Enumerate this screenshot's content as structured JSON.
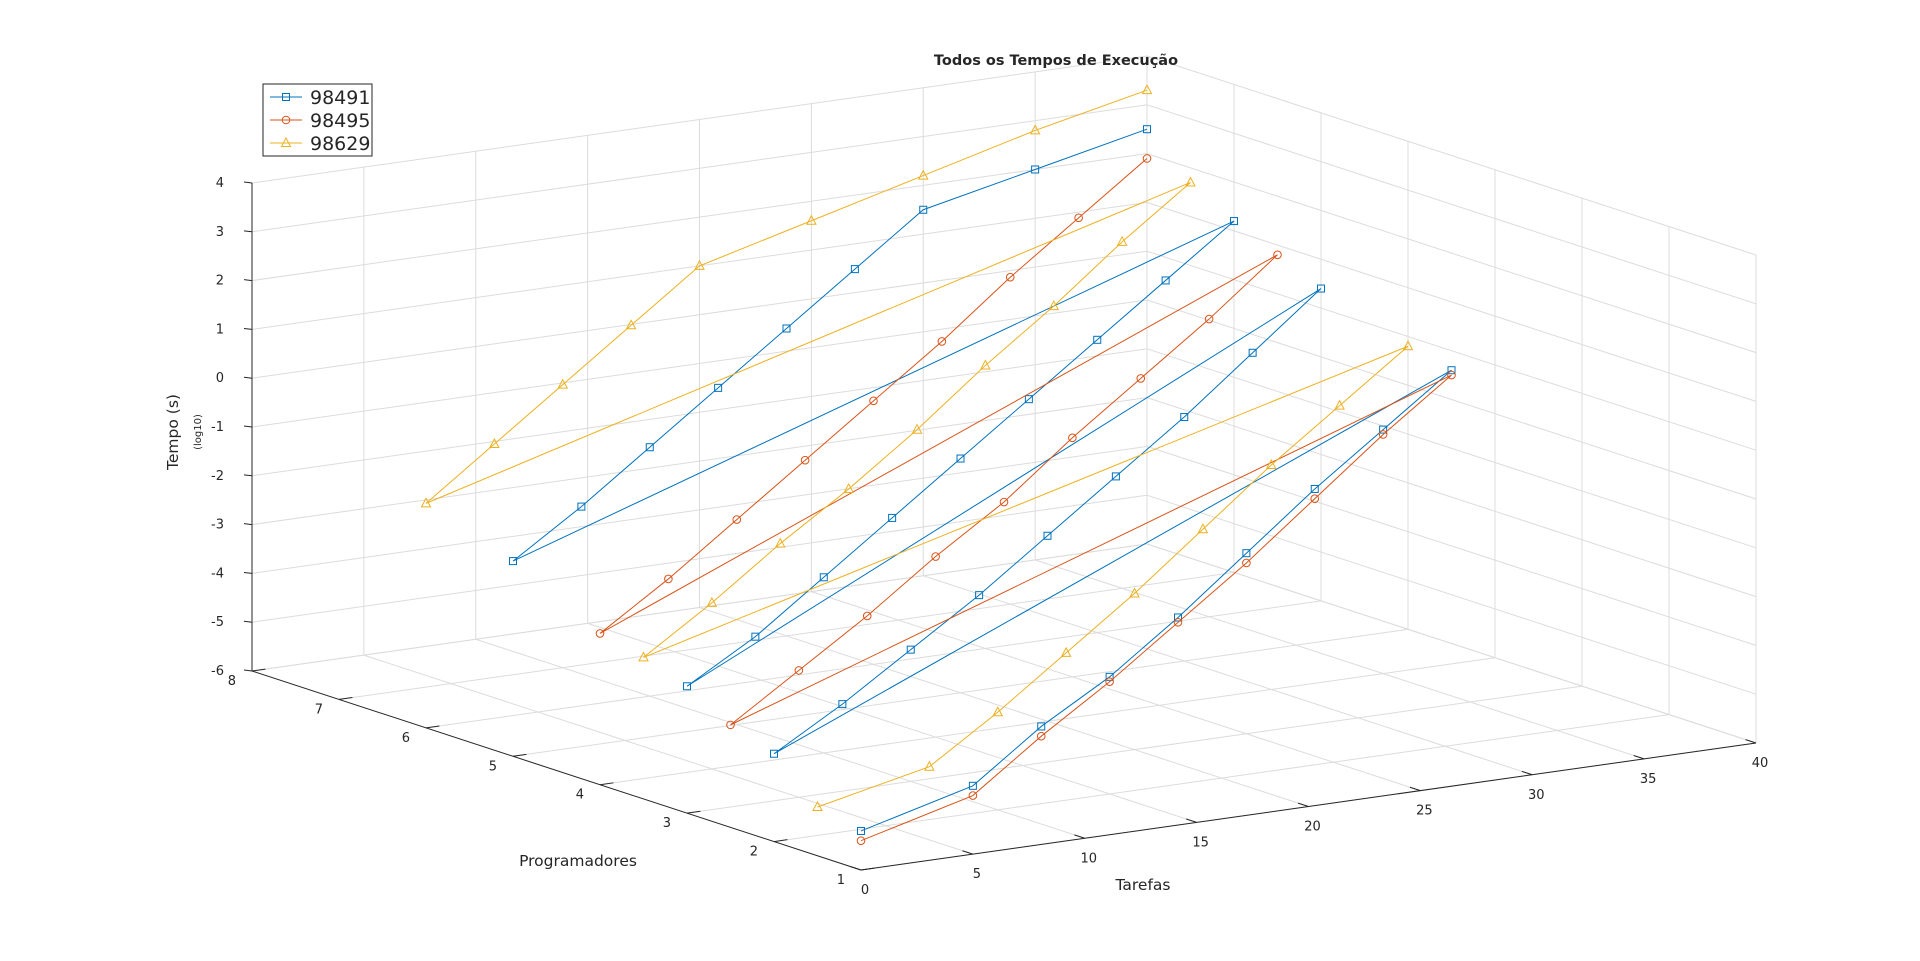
{
  "chart_data": {
    "type": "line",
    "subtype": "3d-line-plot",
    "title": "Todos os Tempos de Execução",
    "xlabel": "Tarefas",
    "ylabel": "Programadores",
    "zlabel": "Tempo (s)",
    "zlabel_sub": "(log10)",
    "xlim": [
      0,
      40
    ],
    "ylim": [
      1,
      8
    ],
    "zlim": [
      -6,
      4
    ],
    "xticks": [
      "0",
      "5",
      "10",
      "15",
      "20",
      "25",
      "30",
      "35",
      "40"
    ],
    "yticks": [
      "1",
      "2",
      "3",
      "4",
      "5",
      "6",
      "7",
      "8"
    ],
    "zticks": [
      "-6",
      "-5",
      "-4",
      "-3",
      "-2",
      "-1",
      "0",
      "1",
      "2",
      "3",
      "4"
    ],
    "grid": true,
    "legend_position": "top-left",
    "legend_entries": [
      "98491",
      "98495",
      "98629"
    ],
    "series": [
      {
        "name": "98491",
        "color": "#0072BD",
        "marker": "square",
        "points_approx": [
          [
            0,
            1,
            -5.2
          ],
          [
            5,
            1,
            -4.6
          ],
          [
            10,
            1.5,
            -4.0
          ],
          [
            15,
            2,
            -3.6
          ],
          [
            20,
            2.5,
            -3.0
          ],
          [
            25,
            3,
            -2.3
          ],
          [
            30,
            3.5,
            -1.6
          ],
          [
            35,
            4,
            -1.0
          ],
          [
            40,
            4.5,
            -0.4
          ],
          [
            0,
            2,
            -4.2
          ],
          [
            5,
            2.5,
            -3.8
          ],
          [
            10,
            3,
            -3.3
          ],
          [
            15,
            3.5,
            -2.8
          ],
          [
            20,
            4,
            -2.2
          ],
          [
            25,
            4.5,
            -1.6
          ],
          [
            30,
            5,
            -1.0
          ],
          [
            35,
            5.5,
            -0.3
          ],
          [
            40,
            6,
            0.4
          ],
          [
            0,
            3,
            -3.4
          ],
          [
            5,
            3.5,
            -3.0
          ],
          [
            10,
            4,
            -2.4
          ],
          [
            15,
            4.5,
            -1.8
          ],
          [
            20,
            5,
            -1.2
          ],
          [
            25,
            5.5,
            -0.6
          ],
          [
            30,
            6,
            0.0
          ],
          [
            35,
            6.5,
            0.6
          ],
          [
            40,
            7,
            1.2
          ],
          [
            0,
            5,
            -2.0
          ],
          [
            5,
            5.5,
            -1.5
          ],
          [
            10,
            6,
            -0.9
          ],
          [
            15,
            6.5,
            -0.3
          ],
          [
            20,
            7,
            0.3
          ],
          [
            25,
            7.5,
            0.9
          ],
          [
            30,
            8,
            1.5
          ],
          [
            35,
            8,
            2.0
          ],
          [
            40,
            8,
            2.5
          ]
        ]
      },
      {
        "name": "98495",
        "color": "#D95319",
        "marker": "circle",
        "points_approx": [
          [
            0,
            1,
            -5.4
          ],
          [
            5,
            1,
            -4.8
          ],
          [
            10,
            1.5,
            -4.2
          ],
          [
            15,
            2,
            -3.7
          ],
          [
            20,
            2.5,
            -3.1
          ],
          [
            25,
            3,
            -2.5
          ],
          [
            30,
            3.5,
            -1.8
          ],
          [
            35,
            4,
            -1.1
          ],
          [
            40,
            4.5,
            -0.5
          ],
          [
            0,
            2.5,
            -3.9
          ],
          [
            5,
            3,
            -3.4
          ],
          [
            10,
            3.5,
            -2.9
          ],
          [
            15,
            4,
            -2.3
          ],
          [
            20,
            4.5,
            -1.8
          ],
          [
            25,
            5,
            -1.1
          ],
          [
            30,
            5.5,
            -0.5
          ],
          [
            35,
            6,
            0.1
          ],
          [
            40,
            6.5,
            0.8
          ],
          [
            0,
            4,
            -2.9
          ],
          [
            5,
            4.5,
            -2.4
          ],
          [
            10,
            5,
            -1.8
          ],
          [
            15,
            5.5,
            -1.2
          ],
          [
            20,
            6,
            -0.6
          ],
          [
            25,
            6.5,
            0.0
          ],
          [
            30,
            7,
            0.7
          ],
          [
            35,
            7.5,
            1.3
          ],
          [
            40,
            8,
            1.9
          ]
        ]
      },
      {
        "name": "98629",
        "color": "#EDB120",
        "marker": "triangle",
        "points_approx": [
          [
            0,
            1.5,
            -5.0
          ],
          [
            5,
            1.5,
            -4.5
          ],
          [
            10,
            2,
            -4.0
          ],
          [
            15,
            2.5,
            -3.4
          ],
          [
            20,
            3,
            -2.8
          ],
          [
            25,
            3.5,
            -2.1
          ],
          [
            30,
            4,
            -1.4
          ],
          [
            35,
            4.5,
            -0.8
          ],
          [
            40,
            5,
            -0.2
          ],
          [
            0,
            3.5,
            -3.1
          ],
          [
            5,
            4,
            -2.6
          ],
          [
            10,
            4.5,
            -2.0
          ],
          [
            15,
            5,
            -1.5
          ],
          [
            20,
            5.5,
            -0.9
          ],
          [
            25,
            6,
            -0.2
          ],
          [
            30,
            6.5,
            0.4
          ],
          [
            35,
            7,
            1.1
          ],
          [
            40,
            7.5,
            1.7
          ],
          [
            0,
            6,
            -1.4
          ],
          [
            5,
            6.5,
            -0.8
          ],
          [
            10,
            7,
            -0.2
          ],
          [
            15,
            7.5,
            0.4
          ],
          [
            20,
            8,
            1.0
          ],
          [
            25,
            8,
            1.6
          ],
          [
            30,
            8,
            2.2
          ],
          [
            35,
            8,
            2.8
          ],
          [
            40,
            8,
            3.3
          ]
        ]
      }
    ]
  }
}
